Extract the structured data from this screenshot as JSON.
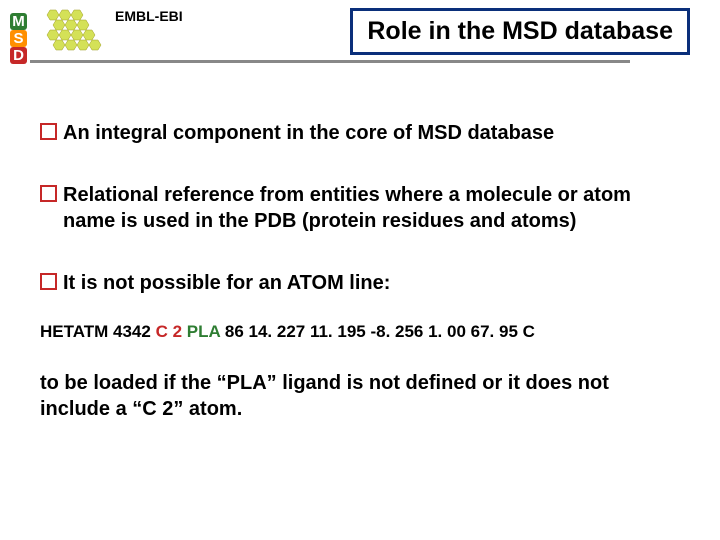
{
  "header": {
    "org_label": "EMBL-EBI",
    "title": "Role in the MSD database",
    "logo": {
      "m_color": "#2e7d32",
      "s_color": "#ff8f00",
      "d_color": "#c62828",
      "m_text": "M",
      "s_text": "S",
      "d_text": "D"
    },
    "title_border": "#0a2f7a"
  },
  "bullets": [
    {
      "color": "#c62828",
      "text": "An integral component in the core of MSD database"
    },
    {
      "color": "#c62828",
      "text": "Relational reference from entities where a molecule or atom name is used in the PDB (protein residues and atoms)"
    },
    {
      "color": "#c62828",
      "text": "It is not possible for an ATOM line:"
    }
  ],
  "hetatm": {
    "parts": [
      {
        "text": "HETATM 4342  ",
        "color": "#000000"
      },
      {
        "text": "C 2",
        "color": "#c62828"
      },
      {
        "text": " ",
        "color": "#000000"
      },
      {
        "text": "PLA",
        "color": "#2e7d32"
      },
      {
        "text": " 86  14. 227  11. 195  -8. 256  1. 00 67. 95  C",
        "color": "#000000"
      }
    ]
  },
  "closing_text": "to be loaded if the “PLA” ligand is not defined or it does not include a “C 2” atom."
}
